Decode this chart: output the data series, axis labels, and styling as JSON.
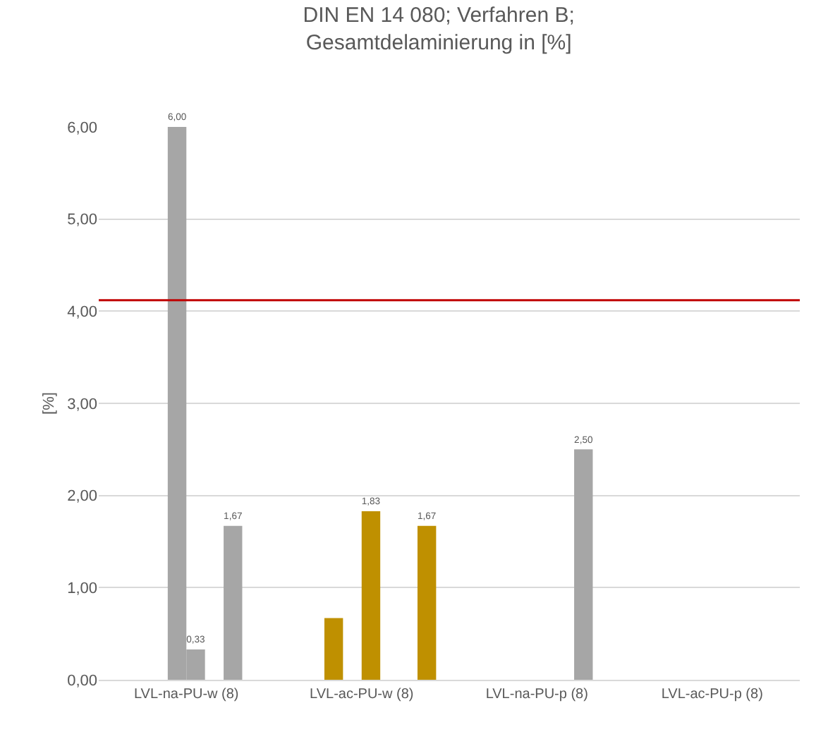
{
  "chart_data": {
    "type": "bar",
    "title": "DIN EN 14 080; Verfahren B; Gesamtdelaminierung in [%]",
    "ylabel": "[%]",
    "categories": [
      "LVL-na-PU-w (8)",
      "LVL-ac-PU-w (8)",
      "LVL-na-PU-p (8)",
      "LVL-ac-PU-p (8)"
    ],
    "series": [
      {
        "colors": [
          "#a6a6a6",
          "#bf9000",
          "#a6a6a6",
          "#bf9000"
        ],
        "values": [
          0,
          0,
          0,
          0
        ],
        "value_labels": [
          null,
          null,
          null,
          null
        ]
      },
      {
        "colors": [
          "#a6a6a6",
          "#bf9000",
          "#a6a6a6",
          "#bf9000"
        ],
        "values": [
          0,
          0,
          0,
          0
        ],
        "value_labels": [
          null,
          null,
          null,
          null
        ]
      },
      {
        "colors": [
          "#a6a6a6",
          "#bf9000",
          "#a6a6a6",
          "#bf9000"
        ],
        "values": [
          0,
          0.67,
          0,
          0
        ],
        "value_labels": [
          null,
          null,
          null,
          null
        ]
      },
      {
        "colors": [
          "#a6a6a6",
          "#bf9000",
          "#a6a6a6",
          "#bf9000"
        ],
        "values": [
          6.0,
          0,
          0,
          0
        ],
        "value_labels": [
          "6,00",
          null,
          null,
          null
        ]
      },
      {
        "colors": [
          "#a6a6a6",
          "#bf9000",
          "#a6a6a6",
          "#bf9000"
        ],
        "values": [
          0.33,
          1.83,
          0,
          0
        ],
        "value_labels": [
          "0,33",
          "1,83",
          null,
          null
        ]
      },
      {
        "colors": [
          "#a6a6a6",
          "#bf9000",
          "#a6a6a6",
          "#bf9000"
        ],
        "values": [
          0,
          0,
          0,
          0
        ],
        "value_labels": [
          null,
          null,
          null,
          null
        ]
      },
      {
        "colors": [
          "#a6a6a6",
          "#bf9000",
          "#a6a6a6",
          "#bf9000"
        ],
        "values": [
          1.67,
          0,
          2.5,
          0
        ],
        "value_labels": [
          "1,67",
          null,
          "2,50",
          null
        ]
      },
      {
        "colors": [
          "#a6a6a6",
          "#bf9000",
          "#a6a6a6",
          "#bf9000"
        ],
        "values": [
          0,
          1.67,
          0,
          0
        ],
        "value_labels": [
          null,
          "1,67",
          null,
          null
        ]
      }
    ],
    "ylim": [
      0,
      6
    ],
    "yticks": [
      {
        "value": 0,
        "label": "0,00"
      },
      {
        "value": 1,
        "label": "1,00"
      },
      {
        "value": 2,
        "label": "2,00"
      },
      {
        "value": 3,
        "label": "3,00"
      },
      {
        "value": 4,
        "label": "4,00"
      },
      {
        "value": 5,
        "label": "5,00"
      },
      {
        "value": 6,
        "label": "6,00"
      }
    ],
    "ref_lines": [
      {
        "axis": "y",
        "value": 4.12,
        "color": "#c00000"
      }
    ],
    "grid": "y"
  }
}
